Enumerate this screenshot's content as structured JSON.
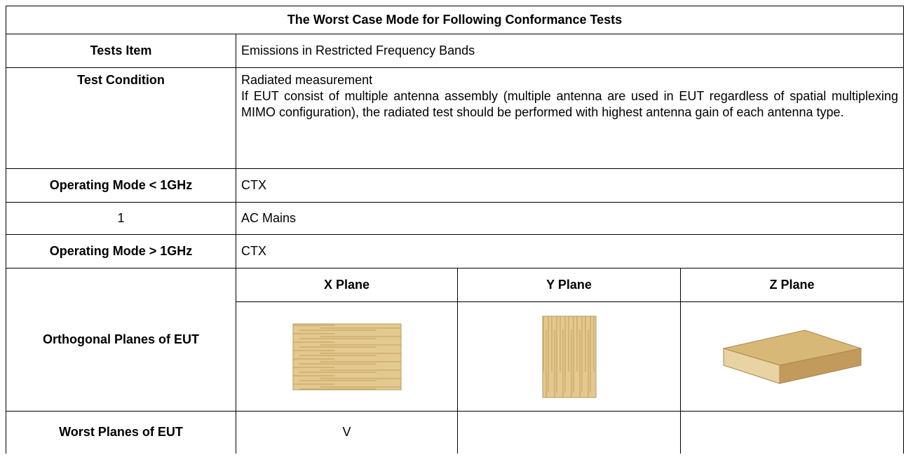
{
  "title": "The Worst Case Mode for Following Conformance Tests",
  "rows": [
    {
      "label": "Tests Item",
      "value": "Emissions in Restricted Frequency Bands"
    },
    {
      "label": "Test Condition",
      "lines": [
        "Radiated measurement",
        "If EUT consist of multiple antenna assembly (multiple antenna are used in EUT regardless of spatial multiplexing MIMO configuration), the radiated test should be performed with highest antenna gain of each antenna type."
      ]
    },
    {
      "label": "Operating Mode < 1GHz",
      "value": "CTX"
    },
    {
      "label": "1",
      "value": "AC Mains"
    },
    {
      "label": "Operating Mode > 1GHz",
      "value": "CTX"
    }
  ],
  "planes": {
    "label": "Orthogonal Planes of EUT",
    "columns": [
      "X Plane",
      "Y Plane",
      "Z Plane"
    ]
  },
  "worst": {
    "label": "Worst Planes of EUT",
    "marks": [
      "V",
      null,
      null
    ]
  }
}
